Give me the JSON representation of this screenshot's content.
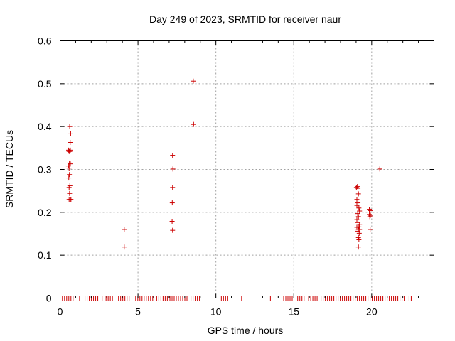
{
  "chart_data": {
    "type": "scatter",
    "title": "Day 249 of 2023, SRMTID for receiver naur",
    "xlabel": "GPS time / hours",
    "ylabel": "SRMTID / TECUs",
    "xlim": [
      0,
      24
    ],
    "ylim": [
      0,
      0.6
    ],
    "xticks": [
      "0",
      "5",
      "10",
      "15",
      "20"
    ],
    "yticks": [
      "0",
      "0.1",
      "0.2",
      "0.3",
      "0.4",
      "0.5",
      "0.6"
    ],
    "grid": true,
    "marker_color": "#cc0000",
    "marker": "plus",
    "points": [
      [
        0.62,
        0.4
      ],
      [
        0.68,
        0.383
      ],
      [
        0.65,
        0.363
      ],
      [
        0.55,
        0.345
      ],
      [
        0.58,
        0.342
      ],
      [
        0.62,
        0.342
      ],
      [
        0.66,
        0.345
      ],
      [
        0.6,
        0.315
      ],
      [
        0.66,
        0.313
      ],
      [
        0.54,
        0.308
      ],
      [
        0.58,
        0.303
      ],
      [
        0.6,
        0.288
      ],
      [
        0.56,
        0.28
      ],
      [
        0.63,
        0.262
      ],
      [
        0.58,
        0.258
      ],
      [
        0.61,
        0.244
      ],
      [
        0.58,
        0.23
      ],
      [
        0.65,
        0.23
      ],
      [
        0.7,
        0.23
      ],
      [
        4.12,
        0.16
      ],
      [
        4.12,
        0.119
      ],
      [
        7.22,
        0.333
      ],
      [
        7.24,
        0.301
      ],
      [
        7.22,
        0.258
      ],
      [
        7.2,
        0.222
      ],
      [
        7.19,
        0.179
      ],
      [
        7.22,
        0.158
      ],
      [
        8.55,
        0.506
      ],
      [
        8.57,
        0.405
      ],
      [
        19.02,
        0.258
      ],
      [
        19.08,
        0.26
      ],
      [
        19.12,
        0.256
      ],
      [
        19.15,
        0.243
      ],
      [
        19.05,
        0.23
      ],
      [
        19.12,
        0.222
      ],
      [
        19.05,
        0.216
      ],
      [
        19.18,
        0.21
      ],
      [
        19.22,
        0.203
      ],
      [
        19.1,
        0.197
      ],
      [
        19.15,
        0.19
      ],
      [
        19.05,
        0.183
      ],
      [
        19.12,
        0.176
      ],
      [
        19.22,
        0.172
      ],
      [
        19.18,
        0.166
      ],
      [
        19.05,
        0.165
      ],
      [
        19.15,
        0.16
      ],
      [
        19.22,
        0.16
      ],
      [
        19.12,
        0.156
      ],
      [
        19.2,
        0.151
      ],
      [
        19.15,
        0.141
      ],
      [
        19.18,
        0.136
      ],
      [
        19.15,
        0.119
      ],
      [
        19.85,
        0.207
      ],
      [
        19.9,
        0.204
      ],
      [
        19.85,
        0.195
      ],
      [
        19.92,
        0.193
      ],
      [
        19.88,
        0.19
      ],
      [
        19.9,
        0.16
      ],
      [
        20.52,
        0.301
      ]
    ],
    "zero_segments": [
      [
        0.15,
        0.85
      ],
      [
        1.25,
        1.35
      ],
      [
        1.6,
        2.55
      ],
      [
        2.7,
        2.8
      ],
      [
        2.95,
        3.45
      ],
      [
        3.75,
        4.5
      ],
      [
        4.85,
        6.0
      ],
      [
        6.2,
        6.95
      ],
      [
        7.05,
        8.25
      ],
      [
        8.4,
        8.95
      ],
      [
        10.35,
        10.85
      ],
      [
        11.65,
        11.7
      ],
      [
        13.5,
        13.55
      ],
      [
        14.35,
        14.9
      ],
      [
        15.25,
        15.75
      ],
      [
        15.95,
        16.55
      ],
      [
        16.75,
        19.25
      ],
      [
        19.35,
        22.2
      ],
      [
        22.4,
        22.6
      ]
    ]
  }
}
